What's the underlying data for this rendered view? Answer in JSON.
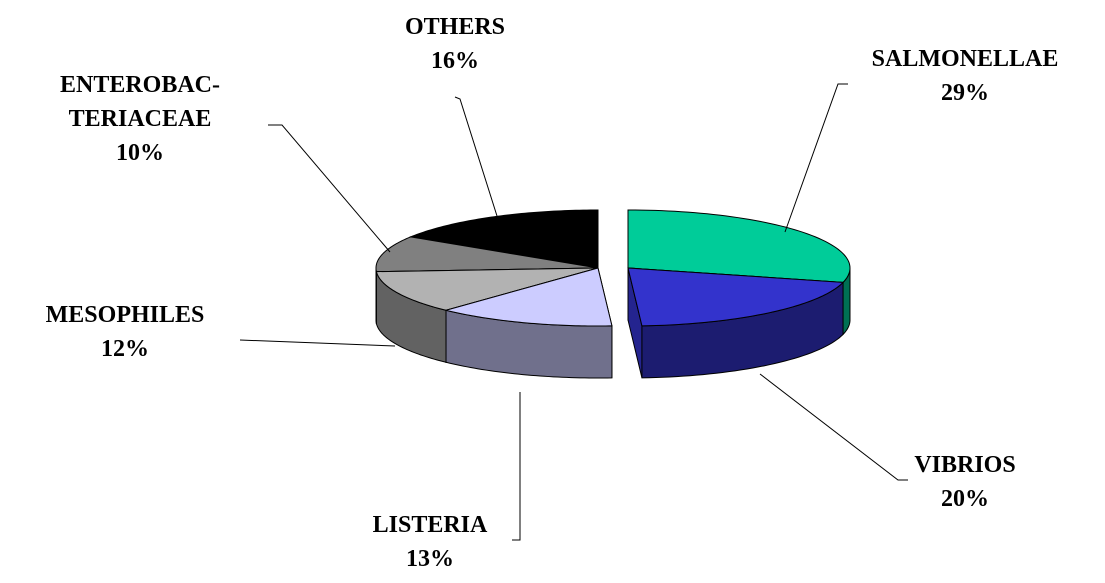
{
  "chart_data": {
    "type": "pie",
    "categories": [
      "SALMONELLAE",
      "VIBRIOS",
      "LISTERIA",
      "MESOPHILES",
      "ENTEROBAC-\nTERIACEAE",
      "OTHERS"
    ],
    "values": [
      29,
      20,
      13,
      12,
      10,
      16
    ],
    "value_labels": [
      "29%",
      "20%",
      "13%",
      "12%",
      "10%",
      "16%"
    ],
    "colors": [
      "#00cc99",
      "#3333cc",
      "#ccccff",
      "#b2b2b2",
      "#808080",
      "#000000"
    ],
    "three_d": true,
    "exploded": true
  }
}
